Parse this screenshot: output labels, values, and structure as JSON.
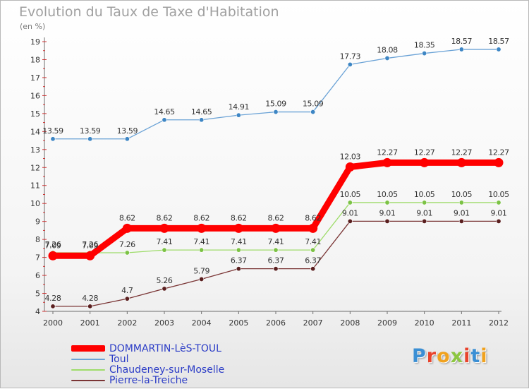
{
  "header": {
    "title": "Evolution du Taux de Taxe d'Habitation",
    "unit": "(en %)"
  },
  "logo": {
    "text": "Proxiti",
    "colors": [
      "#3b8fd4",
      "#e8432c",
      "#f0a21f",
      "#8cc63f",
      "#e8432c",
      "#3b8fd4",
      "#f0a21f"
    ]
  },
  "chart_data": {
    "type": "line",
    "title": "Evolution du Taux de Taxe d'Habitation",
    "ylabel": "(en %)",
    "xlabel": "",
    "x": [
      "2000",
      "2001",
      "2002",
      "2003",
      "2004",
      "2005",
      "2006",
      "2007",
      "2008",
      "2009",
      "2010",
      "2011",
      "2012"
    ],
    "ylim": [
      4,
      19
    ],
    "yticks": [
      "4",
      "5",
      "6",
      "7",
      "8",
      "9",
      "10",
      "11",
      "12",
      "13",
      "14",
      "15",
      "16",
      "17",
      "18",
      "19"
    ],
    "grid": false,
    "legend_position": "bottom-left",
    "series": [
      {
        "name": "DOMMARTIN-LèS-TOUL",
        "color": "#ff0000",
        "emphasis": "thick",
        "values": [
          7.09,
          7.09,
          8.62,
          8.62,
          8.62,
          8.62,
          8.62,
          8.62,
          12.03,
          12.27,
          12.27,
          12.27,
          12.27
        ],
        "labels": [
          "7.09",
          "7.09",
          "8.62",
          "8.62",
          "8.62",
          "8.62",
          "8.62",
          "8.62",
          "12.03",
          "12.27",
          "12.27",
          "12.27",
          "12.27"
        ]
      },
      {
        "name": "Toul",
        "color": "#6aa2d6",
        "marker": "#3e86c4",
        "values": [
          13.59,
          13.59,
          13.59,
          14.65,
          14.65,
          14.91,
          15.09,
          15.09,
          17.73,
          18.08,
          18.35,
          18.57,
          18.57
        ],
        "labels": [
          "13.59",
          "13.59",
          "13.59",
          "14.65",
          "14.65",
          "14.91",
          "15.09",
          "15.09",
          "17.73",
          "18.08",
          "18.35",
          "18.57",
          "18.57"
        ]
      },
      {
        "name": "Chaudeney-sur-Moselle",
        "color": "#9edc6a",
        "marker": "#7cc245",
        "values": [
          7.26,
          7.26,
          7.26,
          7.41,
          7.41,
          7.41,
          7.41,
          7.41,
          10.05,
          10.05,
          10.05,
          10.05,
          10.05
        ],
        "labels": [
          "7.26",
          "7.26",
          "7.26",
          "7.41",
          "7.41",
          "7.41",
          "7.41",
          "7.41",
          "10.05",
          "10.05",
          "10.05",
          "10.05",
          "10.05"
        ]
      },
      {
        "name": "Pierre-la-Treiche",
        "color": "#7a3535",
        "marker": "#5a1f1f",
        "values": [
          4.28,
          4.28,
          4.7,
          5.26,
          5.79,
          6.37,
          6.37,
          6.37,
          9.01,
          9.01,
          9.01,
          9.01,
          9.01
        ],
        "labels": [
          "4.28",
          "4.28",
          "4.7",
          "5.26",
          "5.79",
          "6.37",
          "6.37",
          "6.37",
          "9.01",
          "9.01",
          "9.01",
          "9.01",
          "9.01"
        ]
      }
    ]
  }
}
